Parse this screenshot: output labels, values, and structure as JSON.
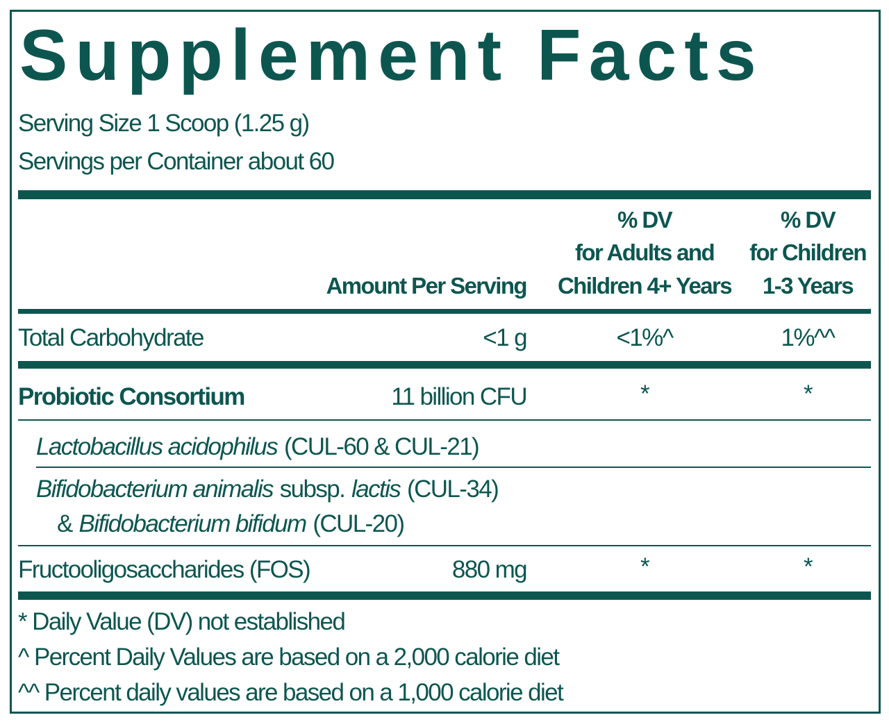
{
  "title": "Supplement Facts",
  "serving_size": "Serving Size 1 Scoop (1.25 g)",
  "servings_per_container": "Servings per Container about 60",
  "header": {
    "amount": "Amount Per Serving",
    "dv_adults": [
      "% DV",
      "for Adults and",
      "Children 4+ Years"
    ],
    "dv_children": [
      "% DV",
      "for Children",
      "1-3 Years"
    ]
  },
  "rows": [
    {
      "name": "Total Carbohydrate",
      "amount": "<1 g",
      "dv_adults": "<1%^",
      "dv_children": "1%^^"
    },
    {
      "name": "Probiotic Consortium",
      "amount": "11 billion CFU",
      "dv_adults": "*",
      "dv_children": "*"
    },
    {
      "lines": [
        [
          {
            "text": "Lactobacillus acidophilus",
            "italic": true
          },
          {
            "text": "(CUL-60 & CUL-21)",
            "italic": false
          }
        ]
      ]
    },
    {
      "lines": [
        [
          {
            "text": "Bifidobacterium animalis",
            "italic": true
          },
          {
            "text": "subsp.",
            "italic": false
          },
          {
            "text": "lactis",
            "italic": true
          },
          {
            "text": "(CUL-34)",
            "italic": false
          }
        ],
        [
          {
            "text": "&",
            "italic": false
          },
          {
            "text": "Bifidobacterium bifidum",
            "italic": true
          },
          {
            "text": "(CUL-20)",
            "italic": false
          }
        ]
      ]
    },
    {
      "name": "Fructooligosaccharides (FOS)",
      "amount": "880 mg",
      "dv_adults": "*",
      "dv_children": "*"
    }
  ],
  "footnotes": [
    "* Daily Value (DV) not established",
    "^ Percent Daily Values are based on a 2,000 calorie diet",
    "^^ Percent daily values are based on a 1,000 calorie diet"
  ]
}
